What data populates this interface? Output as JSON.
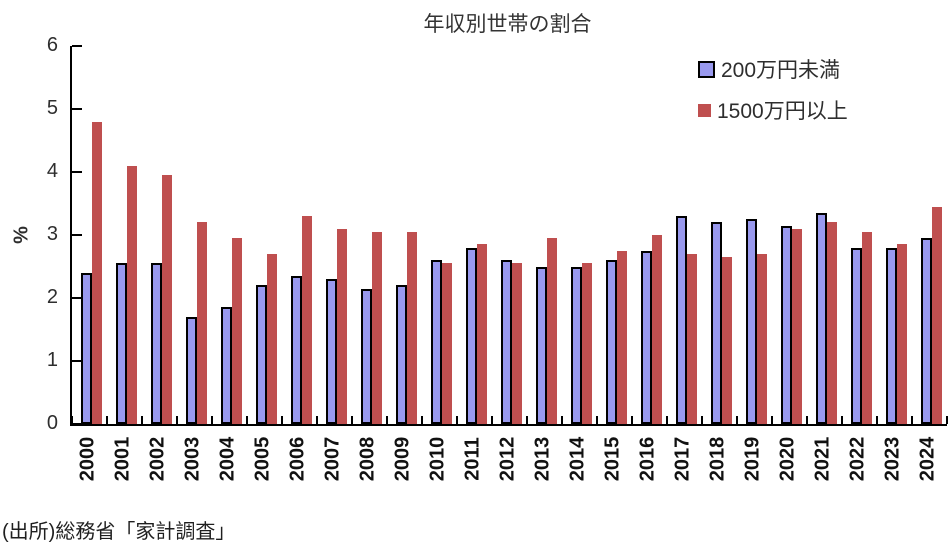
{
  "title": "年収別世帯の割合",
  "source_note": "(出所)総務省「家計調査」",
  "colors": {
    "series_under200": "#9999EE",
    "series_over1500": "#BF4F4F",
    "axis": "#000000"
  },
  "chart_data": {
    "type": "bar",
    "title": "年収別世帯の割合",
    "xlabel": "",
    "ylabel": "%",
    "ylim": [
      0,
      6
    ],
    "yticks": [
      0,
      1,
      2,
      3,
      4,
      5,
      6
    ],
    "grid": false,
    "legend_position": "top-right",
    "source_note": "(出所)総務省「家計調査」",
    "categories": [
      "2000",
      "2001",
      "2002",
      "2003",
      "2004",
      "2005",
      "2006",
      "2007",
      "2008",
      "2009",
      "2010",
      "2011",
      "2012",
      "2013",
      "2014",
      "2015",
      "2016",
      "2017",
      "2018",
      "2019",
      "2020",
      "2021",
      "2022",
      "2023",
      "2024"
    ],
    "series": [
      {
        "name": "200万円未満",
        "color": "#9999EE",
        "border_color": "#000000",
        "values": [
          2.4,
          2.55,
          2.55,
          1.7,
          1.85,
          2.2,
          2.35,
          2.3,
          2.15,
          2.2,
          2.6,
          2.8,
          2.6,
          2.5,
          2.5,
          2.6,
          2.75,
          3.3,
          3.2,
          3.25,
          3.15,
          3.35,
          2.8,
          2.8,
          2.95
        ]
      },
      {
        "name": "1500万円以上",
        "color": "#BF4F4F",
        "border_color": "none",
        "values": [
          4.8,
          4.1,
          3.95,
          3.2,
          2.95,
          2.7,
          3.3,
          3.1,
          3.05,
          3.05,
          2.55,
          2.85,
          2.55,
          2.95,
          2.55,
          2.75,
          3.0,
          2.7,
          2.65,
          2.7,
          3.1,
          3.2,
          3.05,
          2.85,
          3.45
        ]
      }
    ]
  }
}
